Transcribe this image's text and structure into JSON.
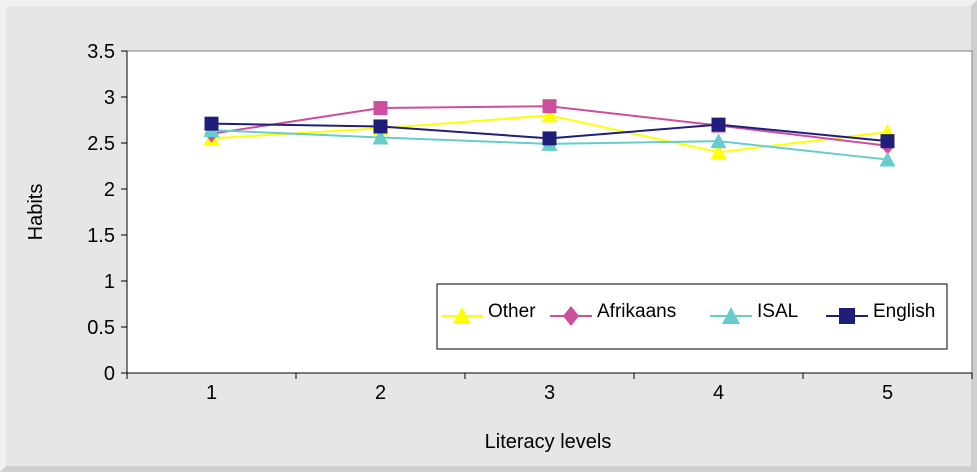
{
  "chart_data": {
    "type": "line",
    "title": "",
    "xlabel": "Literacy levels",
    "ylabel": "Habits",
    "categories": [
      "1",
      "2",
      "3",
      "4",
      "5"
    ],
    "ylim": [
      0,
      3.5
    ],
    "yticks": [
      "0",
      "0.5",
      "1",
      "1.5",
      "2",
      "2.5",
      "3",
      "3.5"
    ],
    "grid": false,
    "legend_position": "bottom-right",
    "series": [
      {
        "name": "Other",
        "values": [
          2.55,
          2.66,
          2.8,
          2.4,
          2.62
        ],
        "color": "#ffff00",
        "marker": "triangle"
      },
      {
        "name": "Afrikaans",
        "values": [
          2.6,
          2.88,
          2.9,
          2.69,
          2.47
        ],
        "color": "#cc4f9e",
        "marker": "diamond"
      },
      {
        "name": "ISAL",
        "values": [
          2.64,
          2.56,
          2.49,
          2.52,
          2.32
        ],
        "color": "#66cccc",
        "marker": "triangle"
      },
      {
        "name": "English",
        "values": [
          2.71,
          2.68,
          2.55,
          2.7,
          2.52
        ],
        "color": "#1f1f7a",
        "marker": "square"
      }
    ],
    "colors": {
      "plot_background": "#ffffff",
      "frame_background": "#e6e6e6",
      "square_marker_afrikaans": "#cc4f9e"
    }
  }
}
